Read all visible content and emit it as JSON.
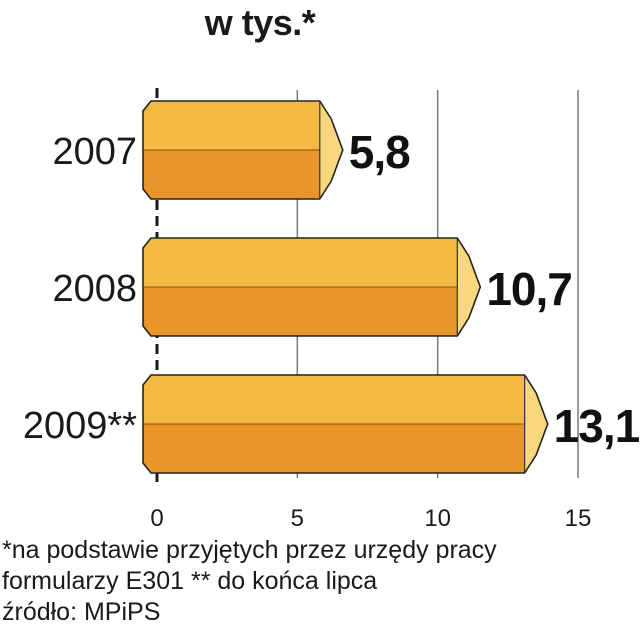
{
  "chart_data": {
    "type": "bar",
    "orientation": "horizontal",
    "title": "w tys.*",
    "categories": [
      "2007",
      "2008",
      "2009**"
    ],
    "values": [
      5.8,
      10.7,
      13.1
    ],
    "value_labels": [
      "5,8",
      "10,7",
      "13,1"
    ],
    "xlim": [
      0,
      15
    ],
    "xticks": [
      0,
      5,
      10,
      15
    ],
    "grid": true,
    "colors": {
      "bar_top": "#f4b942",
      "bar_bottom": "#e8962a",
      "bar_end": "#f9d77c",
      "grid": "#7a7a7a",
      "axis": "#1a1a1a"
    }
  },
  "notes": [
    "*na podstawie przyjętych przez urzędy pracy",
    "formularzy E301 ** do końca lipca",
    "źródło: MPiPS"
  ]
}
